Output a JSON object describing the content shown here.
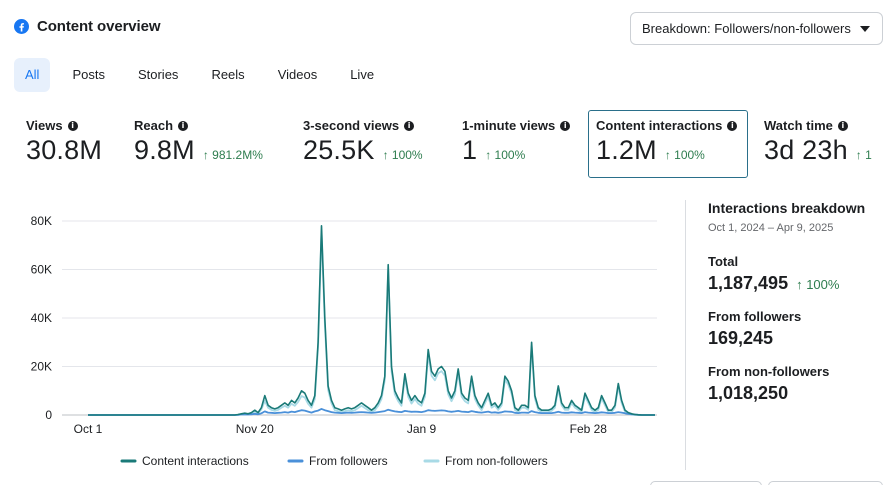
{
  "header": {
    "title": "Content overview",
    "icon": "facebook-icon"
  },
  "breakdown": {
    "label": "Breakdown: Followers/non-followers"
  },
  "tabs": [
    {
      "label": "All",
      "active": true
    },
    {
      "label": "Posts",
      "active": false
    },
    {
      "label": "Stories",
      "active": false
    },
    {
      "label": "Reels",
      "active": false
    },
    {
      "label": "Videos",
      "active": false
    },
    {
      "label": "Live",
      "active": false
    }
  ],
  "metrics": [
    {
      "label": "Views",
      "value": "30.8M",
      "change": ""
    },
    {
      "label": "Reach",
      "value": "9.8M",
      "change": "↑ 981.2M%"
    },
    {
      "label": "3-second views",
      "value": "25.5K",
      "change": "↑ 100%"
    },
    {
      "label": "1-minute views",
      "value": "1",
      "change": "↑ 100%"
    },
    {
      "label": "Content interactions",
      "value": "1.2M",
      "change": "↑ 100%"
    },
    {
      "label": "Watch time",
      "value": "3d 23h",
      "change": "↑ 1"
    }
  ],
  "chart_data": {
    "type": "line",
    "x_ticks": [
      "Oct 1",
      "Nov 20",
      "Jan 9",
      "Feb 28"
    ],
    "y_ticks": [
      "0",
      "20K",
      "40K",
      "60K",
      "80K"
    ],
    "ylim": [
      0,
      80000
    ],
    "legend_position": "bottom",
    "colors": {
      "content_interactions": "#1a7a78",
      "from_followers": "#4a90d9",
      "from_non_followers": "#a8dae6"
    },
    "series": [
      {
        "name": "Content interactions",
        "values": [
          0,
          0,
          0,
          0,
          0,
          0,
          0,
          0,
          0,
          0,
          0,
          0,
          0,
          0,
          0,
          0,
          0,
          0,
          0,
          0,
          0,
          0,
          0,
          0,
          0,
          0,
          0,
          0,
          0,
          0,
          0,
          0,
          0,
          0,
          0,
          0,
          0,
          0,
          0,
          0,
          0,
          0,
          0,
          0,
          0,
          200,
          500,
          800,
          500,
          1000,
          2000,
          1000,
          3000,
          8000,
          4000,
          3000,
          2500,
          3000,
          4000,
          5000,
          4000,
          6000,
          5000,
          7000,
          10000,
          9000,
          6000,
          4000,
          8000,
          30000,
          78000,
          40000,
          12000,
          6000,
          3000,
          2500,
          2000,
          2500,
          3000,
          2500,
          3000,
          4000,
          5000,
          4000,
          3000,
          2000,
          3000,
          5000,
          8000,
          16000,
          62000,
          20000,
          10000,
          7000,
          5000,
          17000,
          9000,
          6000,
          8000,
          6000,
          5000,
          9000,
          27000,
          18000,
          16000,
          19000,
          20000,
          18000,
          10000,
          7000,
          10000,
          19000,
          9000,
          7000,
          6000,
          16000,
          8000,
          5000,
          3000,
          6000,
          9000,
          4000,
          5000,
          3000,
          5000,
          16000,
          14000,
          10000,
          3000,
          2000,
          4000,
          4000,
          3000,
          30000,
          8000,
          3000,
          2000,
          2000,
          2000,
          2500,
          4000,
          12000,
          5000,
          3000,
          3000,
          6000,
          4000,
          3000,
          2000,
          9000,
          6000,
          3000,
          2000,
          3000,
          8000,
          5000,
          2000,
          2000,
          4000,
          13000,
          6000,
          2000,
          1000,
          500,
          200,
          100,
          0,
          0,
          0,
          0,
          0
        ]
      },
      {
        "name": "From followers",
        "values": [
          0,
          0,
          0,
          0,
          0,
          0,
          0,
          0,
          0,
          0,
          0,
          0,
          0,
          0,
          0,
          0,
          0,
          0,
          0,
          0,
          0,
          0,
          0,
          0,
          0,
          0,
          0,
          0,
          0,
          0,
          0,
          0,
          0,
          0,
          0,
          0,
          0,
          0,
          0,
          0,
          0,
          0,
          0,
          0,
          0,
          100,
          200,
          300,
          200,
          300,
          500,
          300,
          700,
          1500,
          1000,
          900,
          800,
          900,
          1000,
          1200,
          1000,
          1400,
          1200,
          1600,
          2000,
          1800,
          1400,
          1000,
          1500,
          1800,
          2500,
          2000,
          1600,
          1200,
          1000,
          900,
          800,
          900,
          1000,
          900,
          1000,
          1100,
          1200,
          1100,
          1000,
          900,
          1000,
          1200,
          1400,
          1600,
          2200,
          1800,
          1500,
          1300,
          1200,
          1700,
          1500,
          1300,
          1400,
          1300,
          1200,
          1500,
          2000,
          1800,
          1700,
          1800,
          1900,
          1800,
          1500,
          1300,
          1500,
          1700,
          1400,
          1300,
          1200,
          1600,
          1300,
          1100,
          1000,
          1200,
          1400,
          1000,
          1100,
          900,
          1100,
          1500,
          1400,
          1300,
          900,
          800,
          1000,
          1000,
          900,
          1600,
          1200,
          900,
          800,
          800,
          800,
          800,
          1000,
          1300,
          1000,
          900,
          900,
          1100,
          1000,
          900,
          800,
          1200,
          1000,
          900,
          800,
          900,
          1100,
          1000,
          800,
          800,
          900,
          1200,
          1000,
          700,
          500,
          300,
          200,
          100,
          0,
          0,
          0,
          0,
          0
        ]
      },
      {
        "name": "From non-followers",
        "values": [
          0,
          0,
          0,
          0,
          0,
          0,
          0,
          0,
          0,
          0,
          0,
          0,
          0,
          0,
          0,
          0,
          0,
          0,
          0,
          0,
          0,
          0,
          0,
          0,
          0,
          0,
          0,
          0,
          0,
          0,
          0,
          0,
          0,
          0,
          0,
          0,
          0,
          0,
          0,
          0,
          0,
          0,
          0,
          0,
          0,
          100,
          300,
          500,
          300,
          700,
          1500,
          700,
          2300,
          5800,
          3000,
          2100,
          1700,
          2100,
          3000,
          3800,
          3000,
          4600,
          3800,
          5400,
          7800,
          7200,
          4600,
          3000,
          6500,
          28200,
          75500,
          38000,
          10400,
          4800,
          2000,
          1600,
          1200,
          1600,
          2000,
          1600,
          2000,
          2900,
          3800,
          2900,
          2000,
          1100,
          2000,
          3800,
          6600,
          14400,
          59800,
          18200,
          8500,
          5700,
          3800,
          15300,
          7500,
          4700,
          6600,
          4700,
          3800,
          7500,
          25000,
          16200,
          14300,
          17200,
          18100,
          16200,
          8500,
          5700,
          8500,
          17300,
          7600,
          5700,
          4800,
          14400,
          6700,
          3900,
          2000,
          4800,
          7600,
          3000,
          3900,
          2100,
          3900,
          14500,
          12600,
          8700,
          2100,
          1200,
          3000,
          3000,
          2100,
          28400,
          6800,
          2100,
          1200,
          1200,
          1200,
          1700,
          3000,
          10700,
          4000,
          2100,
          2100,
          4900,
          3000,
          2100,
          1200,
          7800,
          5000,
          2100,
          1200,
          2100,
          6900,
          4000,
          1200,
          1200,
          3100,
          11800,
          5000,
          1300,
          500,
          200,
          0,
          0,
          0,
          0,
          0,
          0,
          0
        ]
      }
    ]
  },
  "side": {
    "title": "Interactions breakdown",
    "date": "Oct 1, 2024 – Apr 9, 2025",
    "total_label": "Total",
    "total_value": "1,187,495",
    "total_change": "↑ 100%",
    "followers_label": "From followers",
    "followers_value": "169,245",
    "non_followers_label": "From non-followers",
    "non_followers_value": "1,018,250"
  }
}
